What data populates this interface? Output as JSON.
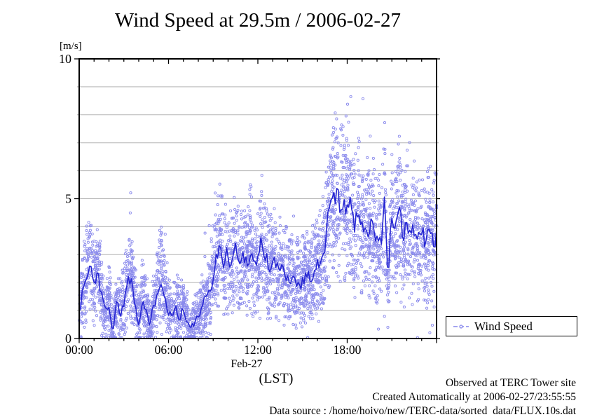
{
  "chart_data": {
    "type": "scatter",
    "title": "Wind Speed at 29.5m / 2006-02-27",
    "y_unit_label": "[m/s]",
    "x_axis": {
      "label_line1": "Feb-27",
      "label_line2": "(LST)",
      "range_hours": [
        0,
        24
      ],
      "major_tick_hours": [
        0,
        6,
        12,
        18,
        24
      ],
      "major_tick_labels": [
        "00:00",
        "06:00",
        "12:00",
        "18:00",
        ""
      ],
      "minor_tick_step_hours": 1
    },
    "y_axis": {
      "range": [
        0,
        10
      ],
      "major_ticks": [
        0,
        5,
        10
      ],
      "grid_step": 1
    },
    "legend": {
      "label": "Wind Speed"
    },
    "colors": {
      "scatter": "#8585ec",
      "line": "#2525d2",
      "grid": "#b5b5b5",
      "axis": "#000000",
      "background": "#ffffff"
    },
    "grid": "horizontal-only",
    "legend_position": "outside-bottom-right",
    "series": [
      {
        "name": "Wind Speed",
        "style": "scatter-open-circles",
        "color": "#8585ec"
      },
      {
        "name": "Wind Speed running mean",
        "style": "line",
        "color": "#2525d2"
      }
    ],
    "series_mean_15min": {
      "units": "m/s",
      "t_start": 0,
      "t_step_hours": 0.25,
      "values": [
        1.1,
        1.7,
        2.2,
        2.6,
        1.9,
        2.5,
        1.6,
        0.9,
        1.3,
        0.4,
        1.25,
        0.95,
        1.3,
        2.1,
        2.2,
        1.3,
        0.75,
        1.4,
        1.05,
        0.45,
        1.0,
        1.85,
        2.3,
        1.7,
        1.1,
        0.8,
        1.1,
        0.85,
        1.1,
        0.6,
        0.3,
        0.5,
        0.8,
        1.0,
        1.3,
        1.7,
        2.3,
        2.8,
        3.45,
        2.6,
        3.05,
        2.8,
        3.25,
        2.6,
        3.0,
        2.85,
        3.2,
        2.65,
        2.9,
        3.45,
        2.9,
        2.65,
        2.7,
        2.45,
        2.5,
        2.25,
        2.35,
        2.2,
        2.1,
        2.05,
        2.15,
        2.3,
        2.2,
        2.45,
        2.65,
        2.5,
        3.4,
        4.3,
        4.9,
        5.2,
        4.6,
        5.3,
        4.9,
        4.6,
        4.2,
        4.6,
        4.1,
        4.35,
        3.8,
        4.1,
        3.5,
        3.3,
        4.9,
        2.35,
        4.3,
        3.7,
        4.3,
        3.6,
        4.05,
        3.5,
        3.95,
        3.4,
        3.8,
        3.3,
        3.9,
        3.5,
        3.8
      ]
    },
    "observed_extremes": {
      "scatter_max": 8.6,
      "scatter_max_time_hours": 19.6,
      "scatter_min": 0.05
    },
    "scatter_model": {
      "count": 4200,
      "seed": 42,
      "spread_base": 0.4,
      "spread_scale": 0.22,
      "spread_mult": 2.2,
      "outlier_frac": 0.025,
      "outlier_mult": 1.8,
      "clamp_min": 0.03,
      "clamp_max": 8.65
    },
    "line_model": {
      "seed": 1337,
      "step_hours": 0.1,
      "jitter_smooth": 0.45,
      "jitter_scale": 0.34
    }
  },
  "annotations": {
    "footer_lines": [
      "Observed at TERC Tower site",
      "Created Automatically at 2006-02-27/23:55:55",
      "Data source : /home/hoivo/new/TERC-data/sorted  data/FLUX.10s.dat"
    ]
  }
}
